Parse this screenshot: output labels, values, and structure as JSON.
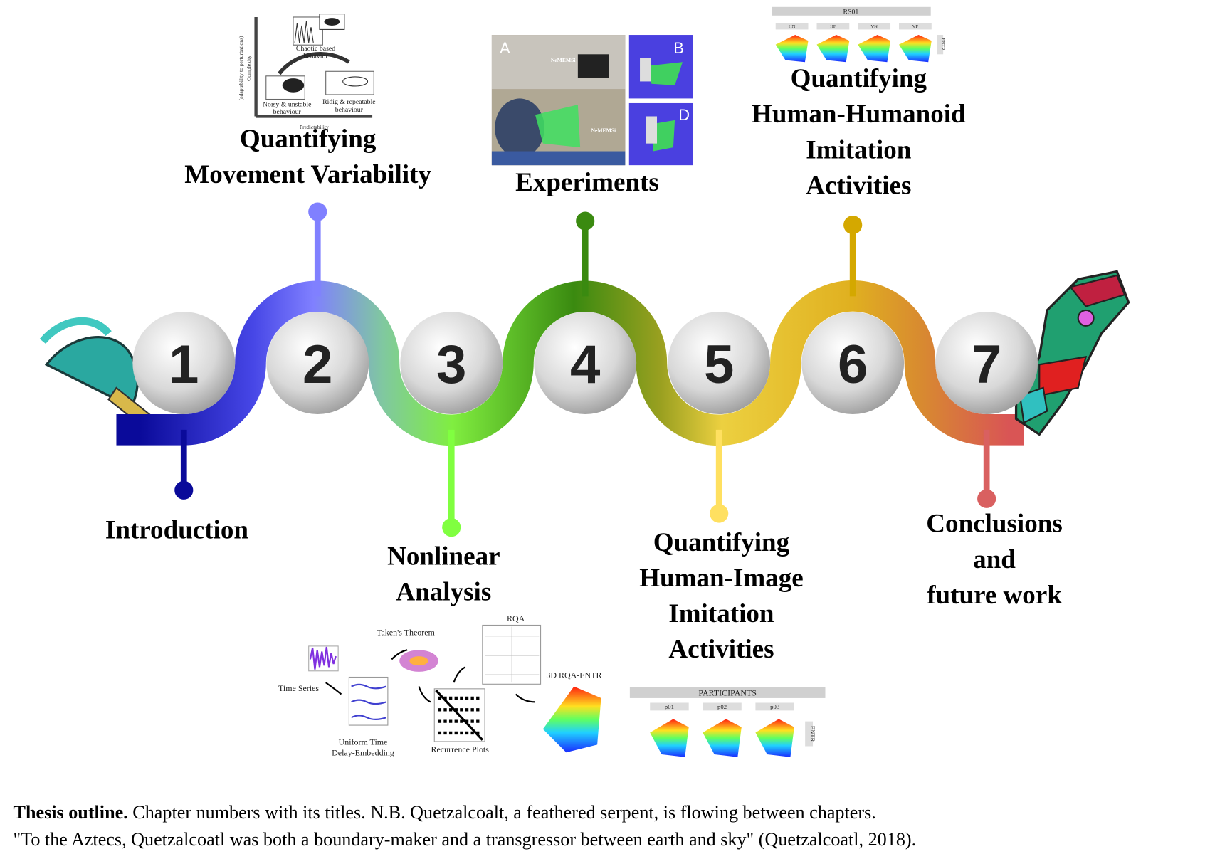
{
  "chapters": [
    {
      "number": 1,
      "title": [
        "Introduction"
      ]
    },
    {
      "number": 2,
      "title": [
        "Quantifying",
        "Movement Variability"
      ]
    },
    {
      "number": 3,
      "title": [
        "Nonlinear",
        "Analysis"
      ]
    },
    {
      "number": 4,
      "title": [
        "Experiments"
      ]
    },
    {
      "number": 5,
      "title": [
        "Quantifying",
        "Human-Image",
        "Imitation",
        "Activities"
      ]
    },
    {
      "number": 6,
      "title": [
        "Quantifying",
        "Human-Humanoid",
        "Imitation",
        "Activities"
      ]
    },
    {
      "number": 7,
      "title": [
        "Conclusions",
        "and",
        "future work"
      ]
    }
  ],
  "figures": {
    "variability": {
      "chaotic": [
        "Chaotic based",
        "behavior"
      ],
      "noisy": [
        "Noisy & unstable",
        "behaviour"
      ],
      "rigid": [
        "Ridig & repeatable",
        "behaviour"
      ],
      "x_axis": "Predictability",
      "y_axis": [
        "Complexity",
        "(adaptability to perturbations)"
      ]
    },
    "experiments": {
      "panels": [
        "A",
        "B",
        "D"
      ],
      "robot": "NeMEMSi"
    },
    "humanoid": {
      "header": "RS01",
      "columns": [
        "HN",
        "HF",
        "VN",
        "VF"
      ],
      "side": "ENTR"
    },
    "nonlinear": {
      "time_series": "Time Series",
      "takens": "Taken's Theorem",
      "rqa": "RQA",
      "rqa3d": "3D RQA-ENTR",
      "recurrence": "Recurrence Plots",
      "embedding": [
        "Uniform Time",
        "Delay-Embedding"
      ]
    },
    "image": {
      "header": "PARTICIPANTS",
      "columns": [
        "p01",
        "p02",
        "p03"
      ],
      "side": "ENTR"
    }
  },
  "caption": {
    "label": "Thesis outline.",
    "line1": " Chapter numbers with its titles. N.B. Quetzalcoalt, a feathered serpent, is flowing between chapters.",
    "line2": "\"To the Aztecs, Quetzalcoatl was both a boundary-maker and a transgressor between earth and sky\" (Quetzalcoatl, 2018)."
  }
}
